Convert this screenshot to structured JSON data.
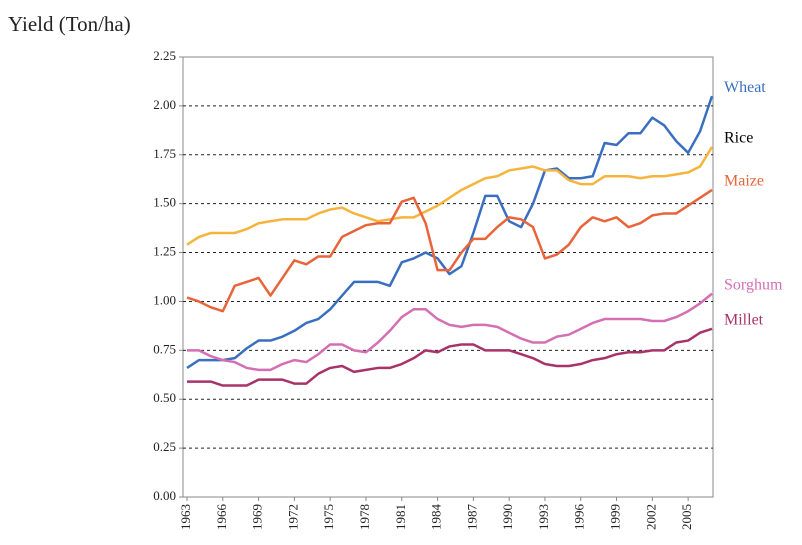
{
  "chart_data": {
    "type": "line",
    "y_label": "Yield (Ton/ha)",
    "x": [
      1963,
      1964,
      1965,
      1966,
      1967,
      1968,
      1969,
      1970,
      1971,
      1972,
      1973,
      1974,
      1975,
      1976,
      1977,
      1978,
      1979,
      1980,
      1981,
      1982,
      1983,
      1984,
      1985,
      1986,
      1987,
      1988,
      1989,
      1990,
      1991,
      1992,
      1993,
      1994,
      1995,
      1996,
      1997,
      1998,
      1999,
      2000,
      2001,
      2002,
      2003,
      2004,
      2005,
      2006,
      2007
    ],
    "xlim": [
      1963,
      2007
    ],
    "xticks": [
      1963,
      1966,
      1969,
      1972,
      1975,
      1978,
      1981,
      1984,
      1987,
      1990,
      1993,
      1996,
      1999,
      2002,
      2005
    ],
    "ylim": [
      0,
      2.25
    ],
    "yticks": [
      {
        "value": 0,
        "label": "0.00"
      },
      0.25,
      {
        "value": 0.5,
        "label": "0.50"
      },
      0.75,
      {
        "value": 1,
        "label": "1.00"
      },
      1.25,
      {
        "value": 1.5,
        "label": "1.50"
      },
      1.75,
      {
        "value": 2,
        "label": "2.00"
      },
      2.25
    ],
    "grid": true,
    "series": [
      {
        "name": "Wheat",
        "color": "#3a6fc0",
        "label_color": "#3a6fc0",
        "values": [
          0.66,
          0.7,
          0.7,
          0.7,
          0.71,
          0.76,
          0.8,
          0.8,
          0.82,
          0.85,
          0.89,
          0.91,
          0.96,
          1.03,
          1.1,
          1.1,
          1.1,
          1.08,
          1.2,
          1.22,
          1.25,
          1.22,
          1.14,
          1.18,
          1.35,
          1.54,
          1.54,
          1.41,
          1.38,
          1.5,
          1.67,
          1.68,
          1.63,
          1.63,
          1.64,
          1.81,
          1.8,
          1.86,
          1.86,
          1.94,
          1.9,
          1.82,
          1.76,
          1.87,
          2.05
        ]
      },
      {
        "name": "Rice",
        "color": "#f5b43c",
        "label_color": "#000000",
        "values": [
          1.29,
          1.33,
          1.35,
          1.35,
          1.35,
          1.37,
          1.4,
          1.41,
          1.42,
          1.42,
          1.42,
          1.45,
          1.47,
          1.48,
          1.45,
          1.43,
          1.41,
          1.42,
          1.43,
          1.43,
          1.46,
          1.49,
          1.53,
          1.57,
          1.6,
          1.63,
          1.64,
          1.67,
          1.68,
          1.69,
          1.67,
          1.67,
          1.62,
          1.6,
          1.6,
          1.64,
          1.64,
          1.64,
          1.63,
          1.64,
          1.64,
          1.65,
          1.66,
          1.69,
          1.79
        ]
      },
      {
        "name": "Maize",
        "color": "#e8643a",
        "label_color": "#e8643a",
        "values": [
          1.02,
          1.0,
          0.97,
          0.95,
          1.08,
          1.1,
          1.12,
          1.03,
          1.12,
          1.21,
          1.19,
          1.23,
          1.23,
          1.33,
          1.36,
          1.39,
          1.4,
          1.4,
          1.51,
          1.53,
          1.4,
          1.16,
          1.16,
          1.25,
          1.32,
          1.32,
          1.38,
          1.43,
          1.42,
          1.38,
          1.22,
          1.24,
          1.29,
          1.38,
          1.43,
          1.41,
          1.43,
          1.38,
          1.4,
          1.44,
          1.45,
          1.45,
          1.49,
          1.53,
          1.57
        ]
      },
      {
        "name": "Sorghum",
        "color": "#d46fb4",
        "label_color": "#d46fb4",
        "values": [
          0.75,
          0.75,
          0.72,
          0.7,
          0.69,
          0.66,
          0.65,
          0.65,
          0.68,
          0.7,
          0.69,
          0.73,
          0.78,
          0.78,
          0.75,
          0.74,
          0.79,
          0.85,
          0.92,
          0.96,
          0.96,
          0.91,
          0.88,
          0.87,
          0.88,
          0.88,
          0.87,
          0.84,
          0.81,
          0.79,
          0.79,
          0.82,
          0.83,
          0.86,
          0.89,
          0.91,
          0.91,
          0.91,
          0.91,
          0.9,
          0.9,
          0.92,
          0.95,
          0.99,
          1.04
        ]
      },
      {
        "name": "Millet",
        "color": "#a8336b",
        "label_color": "#a8336b",
        "values": [
          0.59,
          0.59,
          0.59,
          0.57,
          0.57,
          0.57,
          0.6,
          0.6,
          0.6,
          0.58,
          0.58,
          0.63,
          0.66,
          0.67,
          0.64,
          0.65,
          0.66,
          0.66,
          0.68,
          0.71,
          0.75,
          0.74,
          0.77,
          0.78,
          0.78,
          0.75,
          0.75,
          0.75,
          0.73,
          0.71,
          0.68,
          0.67,
          0.67,
          0.68,
          0.7,
          0.71,
          0.73,
          0.74,
          0.74,
          0.75,
          0.75,
          0.79,
          0.8,
          0.84,
          0.86
        ]
      }
    ]
  }
}
